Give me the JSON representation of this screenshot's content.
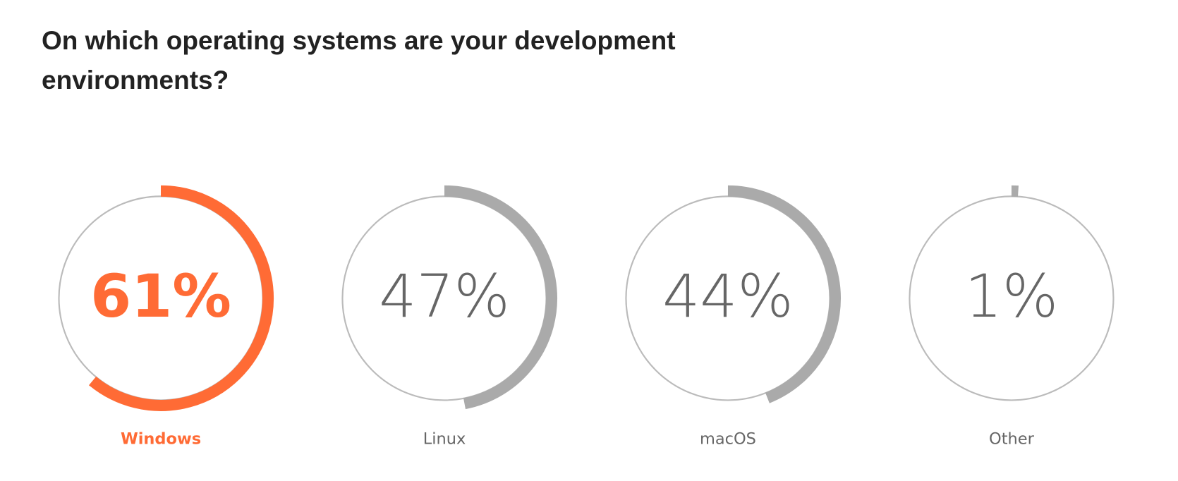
{
  "chart_data": {
    "type": "radial",
    "title": "On which operating systems are your development environments?",
    "categories": [
      "Windows",
      "Linux",
      "macOS",
      "Other"
    ],
    "values": [
      61,
      47,
      44,
      1
    ],
    "value_labels": [
      "61%",
      "47%",
      "44%",
      "1%"
    ],
    "colors": [
      "#ff6b35",
      "#aaaaaa",
      "#aaaaaa",
      "#aaaaaa"
    ],
    "text_colors": [
      "#ff6b35",
      "#666666",
      "#666666",
      "#666666"
    ],
    "bold": [
      true,
      false,
      false,
      false
    ]
  }
}
